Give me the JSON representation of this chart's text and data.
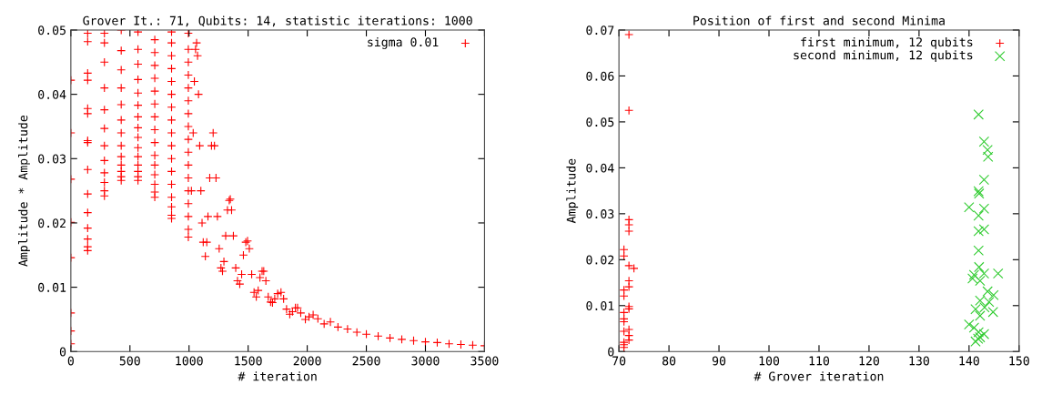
{
  "chart_data": [
    {
      "type": "scatter",
      "title": "Grover It.: 71, Qubits: 14, statistic iterations: 1000",
      "xlabel": "# iteration",
      "ylabel": "Amplitude * Amplitude",
      "xlim": [
        0,
        3500
      ],
      "xticks": [
        0,
        500,
        1000,
        1500,
        2000,
        2500,
        3000,
        3500
      ],
      "ylim": [
        0,
        0.05
      ],
      "yticks": [
        0,
        0.01,
        0.02,
        0.03,
        0.04,
        0.05
      ],
      "legend": "top right",
      "grid": false,
      "series": [
        {
          "name": "sigma 0.01",
          "color": "#ff0000",
          "marker": "plus",
          "x": [
            0,
            0,
            0,
            0,
            0,
            0,
            0,
            0,
            142,
            142,
            142,
            142,
            142,
            142,
            142,
            142,
            142,
            142,
            142,
            142,
            142,
            142,
            142,
            284,
            284,
            284,
            284,
            284,
            284,
            284,
            284,
            284,
            284,
            284,
            284,
            426,
            426,
            426,
            426,
            426,
            426,
            426,
            426,
            426,
            426,
            426,
            426,
            426,
            568,
            568,
            568,
            568,
            568,
            568,
            568,
            568,
            568,
            568,
            568,
            568,
            568,
            568,
            568,
            710,
            710,
            710,
            710,
            710,
            710,
            710,
            710,
            710,
            710,
            710,
            710,
            710,
            710,
            710,
            852,
            852,
            852,
            852,
            852,
            852,
            852,
            852,
            852,
            852,
            852,
            852,
            852,
            852,
            852,
            852,
            852,
            994,
            994,
            994,
            994,
            994,
            994,
            994,
            994,
            994,
            994,
            994,
            994,
            994,
            994,
            994,
            994,
            994,
            1020,
            1035,
            1045,
            1055,
            1064,
            1072,
            1080,
            1090,
            1100,
            1110,
            1120,
            1138,
            1150,
            1160,
            1175,
            1190,
            1204,
            1215,
            1228,
            1240,
            1255,
            1270,
            1283,
            1295,
            1310,
            1325,
            1340,
            1349,
            1360,
            1375,
            1395,
            1410,
            1429,
            1445,
            1460,
            1480,
            1495,
            1510,
            1530,
            1550,
            1569,
            1585,
            1600,
            1618,
            1632,
            1650,
            1670,
            1690,
            1706,
            1725,
            1750,
            1778,
            1800,
            1825,
            1852,
            1875,
            1900,
            1918,
            1945,
            1984,
            2015,
            2050,
            2090,
            2143,
            2196,
            2260,
            2341,
            2420,
            2500,
            2600,
            2700,
            2800,
            2900,
            3000,
            3100,
            3200,
            3300,
            3400,
            3500
          ],
          "values": [
            0.0422,
            0.034,
            0.0268,
            0.0201,
            0.0146,
            0.006,
            0.0032,
            0.0012,
            0.0495,
            0.0482,
            0.0433,
            0.0422,
            0.0378,
            0.037,
            0.0328,
            0.0283,
            0.0245,
            0.0216,
            0.0192,
            0.0175,
            0.0163,
            0.0157,
            0.0325,
            0.0495,
            0.048,
            0.045,
            0.041,
            0.0376,
            0.0347,
            0.032,
            0.0297,
            0.0278,
            0.0263,
            0.025,
            0.0242,
            0.05,
            0.0468,
            0.0438,
            0.041,
            0.0384,
            0.036,
            0.034,
            0.032,
            0.0303,
            0.029,
            0.028,
            0.0272,
            0.0266,
            0.0497,
            0.047,
            0.0447,
            0.0423,
            0.0402,
            0.0383,
            0.0365,
            0.0348,
            0.0333,
            0.0317,
            0.0303,
            0.029,
            0.028,
            0.0272,
            0.0266,
            0.0485,
            0.0465,
            0.0445,
            0.0425,
            0.0405,
            0.0385,
            0.0365,
            0.0345,
            0.0325,
            0.0305,
            0.029,
            0.0275,
            0.026,
            0.0248,
            0.024,
            0.0497,
            0.048,
            0.046,
            0.044,
            0.042,
            0.04,
            0.038,
            0.036,
            0.034,
            0.032,
            0.03,
            0.028,
            0.026,
            0.024,
            0.0225,
            0.0212,
            0.0207,
            0.0178,
            0.019,
            0.021,
            0.023,
            0.025,
            0.027,
            0.029,
            0.031,
            0.033,
            0.035,
            0.037,
            0.039,
            0.041,
            0.043,
            0.045,
            0.047,
            0.0495,
            0.025,
            0.034,
            0.042,
            0.047,
            0.048,
            0.046,
            0.04,
            0.032,
            0.025,
            0.02,
            0.017,
            0.0148,
            0.017,
            0.021,
            0.027,
            0.032,
            0.034,
            0.032,
            0.027,
            0.021,
            0.016,
            0.013,
            0.0125,
            0.014,
            0.018,
            0.022,
            0.0235,
            0.0237,
            0.022,
            0.018,
            0.013,
            0.011,
            0.0105,
            0.012,
            0.015,
            0.017,
            0.0172,
            0.016,
            0.012,
            0.0092,
            0.0085,
            0.0095,
            0.0115,
            0.0125,
            0.0125,
            0.011,
            0.0085,
            0.0077,
            0.0076,
            0.0082,
            0.009,
            0.0092,
            0.0082,
            0.0066,
            0.0058,
            0.0062,
            0.0068,
            0.0068,
            0.006,
            0.005,
            0.0054,
            0.0057,
            0.0051,
            0.0043,
            0.0046,
            0.0038,
            0.0035,
            0.003,
            0.0027,
            0.0024,
            0.0021,
            0.0019,
            0.0017,
            0.0015,
            0.0014,
            0.0012,
            0.0011,
            0.001,
            0.0009
          ]
        }
      ]
    },
    {
      "type": "scatter",
      "title": "Position of first and second Minima",
      "xlabel": "# Grover iteration",
      "ylabel": "Amplitude",
      "xlim": [
        70,
        150
      ],
      "xticks": [
        70,
        80,
        90,
        100,
        110,
        120,
        130,
        140,
        150
      ],
      "ylim": [
        0,
        0.07
      ],
      "yticks": [
        0,
        0.01,
        0.02,
        0.03,
        0.04,
        0.05,
        0.06,
        0.07
      ],
      "legend": "top right",
      "grid": false,
      "series": [
        {
          "name": "first minimum, 12 qubits",
          "color": "#ff0000",
          "marker": "plus",
          "x": [
            72,
            72,
            72,
            72,
            72,
            71,
            71,
            72,
            73,
            72,
            72,
            71,
            71,
            72,
            72,
            71,
            71,
            71,
            72,
            71,
            72,
            72,
            71,
            71,
            71
          ],
          "values": [
            0.069,
            0.0525,
            0.0287,
            0.0276,
            0.0262,
            0.0222,
            0.0208,
            0.0187,
            0.0181,
            0.0154,
            0.0141,
            0.0134,
            0.0121,
            0.0098,
            0.0093,
            0.0085,
            0.0071,
            0.0065,
            0.0048,
            0.0044,
            0.0035,
            0.0025,
            0.002,
            0.0015,
            0.0009
          ]
        },
        {
          "name": "second minimum, 12 qubits",
          "color": "#33cc33",
          "marker": "cross",
          "x": [
            141.9,
            143,
            143.7,
            143.8,
            143,
            141.9,
            142,
            140,
            143,
            141.9,
            143,
            141.9,
            141.9,
            142,
            141,
            143,
            145.8,
            142.2,
            140.7,
            143.7,
            144.9,
            142.2,
            144,
            143.1,
            144.8,
            141.3,
            142.2,
            140,
            141,
            141.9,
            143,
            141.8,
            141.3,
            142.2
          ],
          "values": [
            0.0516,
            0.0457,
            0.0439,
            0.0424,
            0.0374,
            0.0349,
            0.0344,
            0.0314,
            0.0311,
            0.0296,
            0.0266,
            0.0262,
            0.022,
            0.0184,
            0.0167,
            0.017,
            0.017,
            0.0154,
            0.0159,
            0.0131,
            0.0123,
            0.0111,
            0.0108,
            0.0096,
            0.0086,
            0.0092,
            0.0078,
            0.0059,
            0.0052,
            0.0042,
            0.0038,
            0.0028,
            0.0022,
            0.0031
          ]
        }
      ]
    }
  ]
}
